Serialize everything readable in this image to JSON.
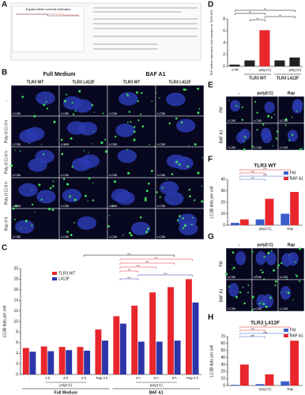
{
  "panel_labels": [
    "A",
    "B",
    "C",
    "D",
    "E",
    "F",
    "G",
    "H"
  ],
  "km": {
    "title": "Kaplan-Meier survival estimates"
  },
  "panel_B": {
    "col_groups": [
      "Full Medium",
      "BAF A1"
    ],
    "columns": [
      "TLR3 WT",
      "TLR3 L412F",
      "TLR3 WT",
      "TLR3 L412F"
    ],
    "rows": [
      "-",
      "Poly (I:C) 4 h",
      "Poly (I:C) 6 h",
      "Poly (I:C) 8 h",
      "Rap 4 h"
    ],
    "image_label": "LC3B"
  },
  "panel_E": {
    "columns": [
      "-",
      "poly(I:C)",
      "Rap"
    ],
    "rows": [
      "FM",
      "BAF A1"
    ],
    "image_label": "LC3B"
  },
  "panel_G": {
    "columns": [
      "-",
      "poly(I:C)",
      "Rap"
    ],
    "rows": [
      "FM",
      "BAF A1"
    ],
    "image_label": "LC3B"
  },
  "chart_data": [
    {
      "type": "bar",
      "y_label": "LC3B dots per cell",
      "categories": [
        "-",
        "4 h",
        "6 h",
        "8 h",
        "Rap 4 h",
        "-",
        "4 h",
        "6 h",
        "8 h",
        "Rap 4 h"
      ],
      "group_labels": [
        "Full Medium",
        "BAF A1"
      ],
      "subgroup_label": "poly(I:C)",
      "series": [
        {
          "name": "TLR3 WT",
          "color": "#e8262b",
          "values": [
            5,
            5.3,
            5.2,
            5.2,
            8.5,
            11,
            13,
            15.5,
            16.5,
            18
          ]
        },
        {
          "name": "L412F",
          "color": "#2b35a8",
          "values": [
            4.3,
            4.4,
            4.6,
            4.5,
            6.4,
            9.6,
            6.2,
            6.2,
            6.4,
            13.6
          ]
        }
      ],
      "ylim": [
        0,
        20
      ],
      "yticks": [
        0,
        2,
        4,
        6,
        8,
        10,
        12,
        14,
        16,
        18,
        20
      ],
      "legend": "upper left",
      "significance": [
        {
          "label": "***",
          "between": [
            3,
            8
          ],
          "color": "#000000"
        },
        {
          "label": "***",
          "between": [
            5,
            9
          ],
          "color": "#e8262b"
        },
        {
          "label": "***",
          "between": [
            5,
            8
          ],
          "color": "#e8262b"
        },
        {
          "label": "***",
          "between": [
            5,
            7
          ],
          "color": "#e8262b"
        },
        {
          "label": "**",
          "between": [
            5,
            6
          ],
          "color": "#e8262b"
        },
        {
          "label": "***",
          "between": [
            6,
            9
          ],
          "color": "#2b35a8"
        },
        {
          "label": "***",
          "between": [
            5,
            6
          ],
          "color": "#2b35a8"
        }
      ]
    },
    {
      "type": "bar",
      "y_label": "TNF relative expression (fold changes vs. TLR3 WT)",
      "categories": [
        "CTR",
        "-",
        "poly(I:C)",
        "-",
        "poly(I:C)"
      ],
      "group_labels": [
        "TLR3 WT",
        "TLR3 L412F"
      ],
      "values": [
        0.3,
        1,
        6.1,
        1,
        1.5
      ],
      "colors": [
        "#222222",
        "#222222",
        "#e8262b",
        "#222222",
        "#222222"
      ],
      "ylim": [
        0,
        8
      ],
      "yticks": [
        0,
        2,
        4,
        6,
        8
      ],
      "significance": [
        {
          "label": "**",
          "between": [
            0,
            4
          ],
          "color": "#000000"
        },
        {
          "label": "**",
          "between": [
            0,
            2
          ],
          "color": "#000000"
        },
        {
          "label": "**",
          "between": [
            2,
            4
          ],
          "color": "#000000"
        },
        {
          "label": "**",
          "between": [
            1,
            2
          ],
          "color": "#000000"
        }
      ]
    },
    {
      "type": "bar",
      "title": "TLR3 WT",
      "y_label": "LC3B dots per cell",
      "categories": [
        "-",
        "poly(I:C)",
        "Rap"
      ],
      "series": [
        {
          "name": "FM",
          "color": "#3a5fcd",
          "values": [
            2,
            5,
            10
          ]
        },
        {
          "name": "BAF A1",
          "color": "#e8262b",
          "values": [
            5,
            23,
            29
          ]
        }
      ],
      "ylim": [
        0,
        40
      ],
      "yticks": [
        0,
        10,
        20,
        30,
        40
      ],
      "legend": "upper right",
      "significance": [
        {
          "label": "***",
          "between": [
            0,
            2
          ],
          "color": "#e8262b"
        },
        {
          "label": "***",
          "between": [
            0,
            1
          ],
          "color": "#e8262b"
        },
        {
          "label": "***",
          "between": [
            0,
            2
          ],
          "color": "#3a5fcd"
        },
        {
          "label": "***",
          "between": [
            0,
            1
          ],
          "color": "#3a5fcd"
        }
      ]
    },
    {
      "type": "bar",
      "title": "TLR3 L412F",
      "y_label": "LC3B dots per cell",
      "categories": [
        "-",
        "poly(I:C)",
        "Rap"
      ],
      "series": [
        {
          "name": "FM",
          "color": "#3a5fcd",
          "values": [
            1,
            2,
            6
          ]
        },
        {
          "name": "BAF A1",
          "color": "#e8262b",
          "values": [
            30,
            16,
            64
          ]
        }
      ],
      "ylim": [
        0,
        70
      ],
      "yticks": [
        0,
        10,
        20,
        30,
        40,
        50,
        60,
        70
      ],
      "legend": "upper right",
      "significance": [
        {
          "label": "***",
          "between": [
            0,
            2
          ],
          "color": "#e8262b"
        },
        {
          "label": "***",
          "between": [
            0,
            1
          ],
          "color": "#e8262b"
        },
        {
          "label": "ns",
          "between": [
            0,
            2
          ],
          "color": "#3a5fcd"
        },
        {
          "label": "ns",
          "between": [
            0,
            1
          ],
          "color": "#3a5fcd"
        }
      ]
    }
  ]
}
